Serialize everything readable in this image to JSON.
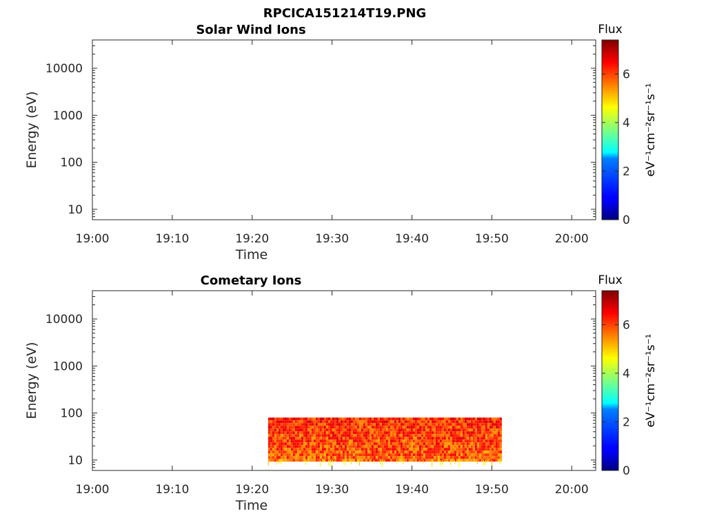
{
  "figure_title": "RPCICA151214T19.PNG",
  "chart_data": [
    {
      "type": "heatmap",
      "title": "Solar Wind Ions",
      "xlabel": "Time",
      "ylabel": "Energy (eV)",
      "x_ticks": [
        "19:00",
        "19:10",
        "19:20",
        "19:30",
        "19:40",
        "19:50",
        "20:00"
      ],
      "xlim": [
        "19:00",
        "20:03"
      ],
      "y_scale": "log",
      "y_ticks": [
        10,
        100,
        1000,
        10000
      ],
      "ylim": [
        6,
        40000
      ],
      "colorbar": {
        "title": "Flux",
        "label": "eV⁻¹cm⁻²sr⁻¹s⁻¹",
        "ticks": [
          0,
          2,
          4,
          6
        ],
        "range": [
          0,
          7.4
        ],
        "colormap": "jet"
      },
      "data_regions": []
    },
    {
      "type": "heatmap",
      "title": "Cometary Ions",
      "xlabel": "Time",
      "ylabel": "Energy (eV)",
      "x_ticks": [
        "19:00",
        "19:10",
        "19:20",
        "19:30",
        "19:40",
        "19:50",
        "20:00"
      ],
      "xlim": [
        "19:00",
        "20:03"
      ],
      "y_scale": "log",
      "y_ticks": [
        10,
        100,
        1000,
        10000
      ],
      "ylim": [
        6,
        40000
      ],
      "colorbar": {
        "title": "Flux",
        "label": "eV⁻¹cm⁻²sr⁻¹s⁻¹",
        "ticks": [
          0,
          2,
          4,
          6
        ],
        "range": [
          0,
          7.4
        ],
        "colormap": "jet"
      },
      "data_regions": [
        {
          "time_start": "19:22",
          "time_end": "19:51",
          "energy_min": 10,
          "energy_max": 80,
          "typical_flux": 6.2,
          "sparse_low_energy_tail": 7
        }
      ]
    }
  ]
}
